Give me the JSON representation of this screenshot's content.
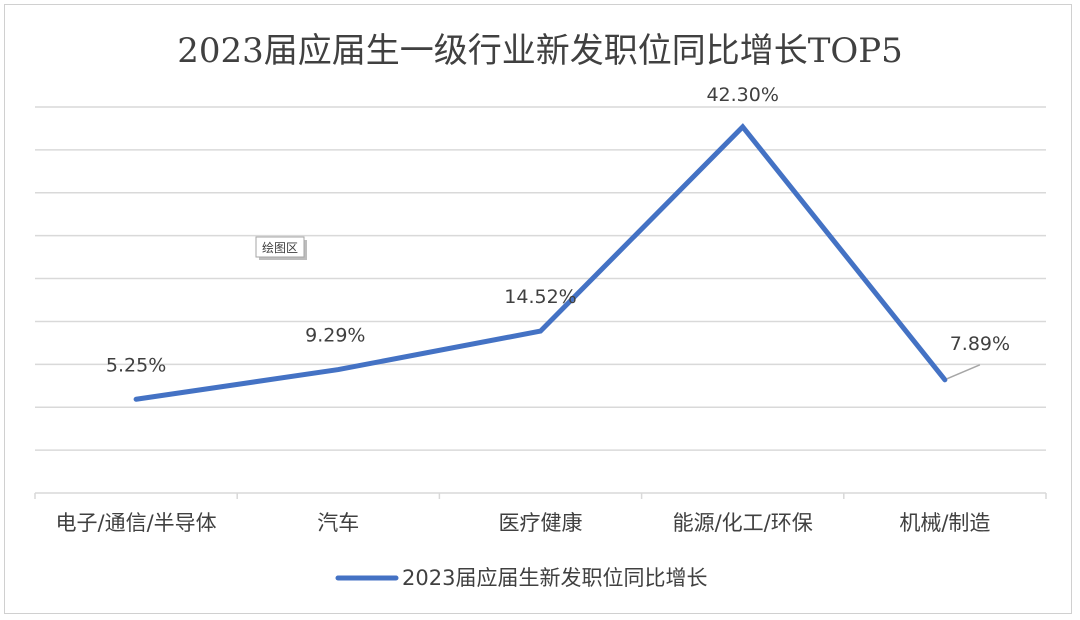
{
  "chart_data": {
    "type": "line",
    "title": "2023届应届生一级行业新发职位同比增长TOP5",
    "categories": [
      "电子/通信/半导体",
      "汽车",
      "医疗健康",
      "能源/化工/环保",
      "机械/制造"
    ],
    "series": [
      {
        "name": "2023届应届生新发职位同比增长",
        "values": [
          5.25,
          9.29,
          14.52,
          42.3,
          7.89
        ],
        "labels": [
          "5.25%",
          "9.29%",
          "14.52%",
          "42.30%",
          "7.89%"
        ],
        "color": "#4472C4"
      }
    ],
    "ylim": [
      -7.5,
      45
    ],
    "grid": true,
    "legend_position": "bottom",
    "tooltip": "绘图区"
  }
}
